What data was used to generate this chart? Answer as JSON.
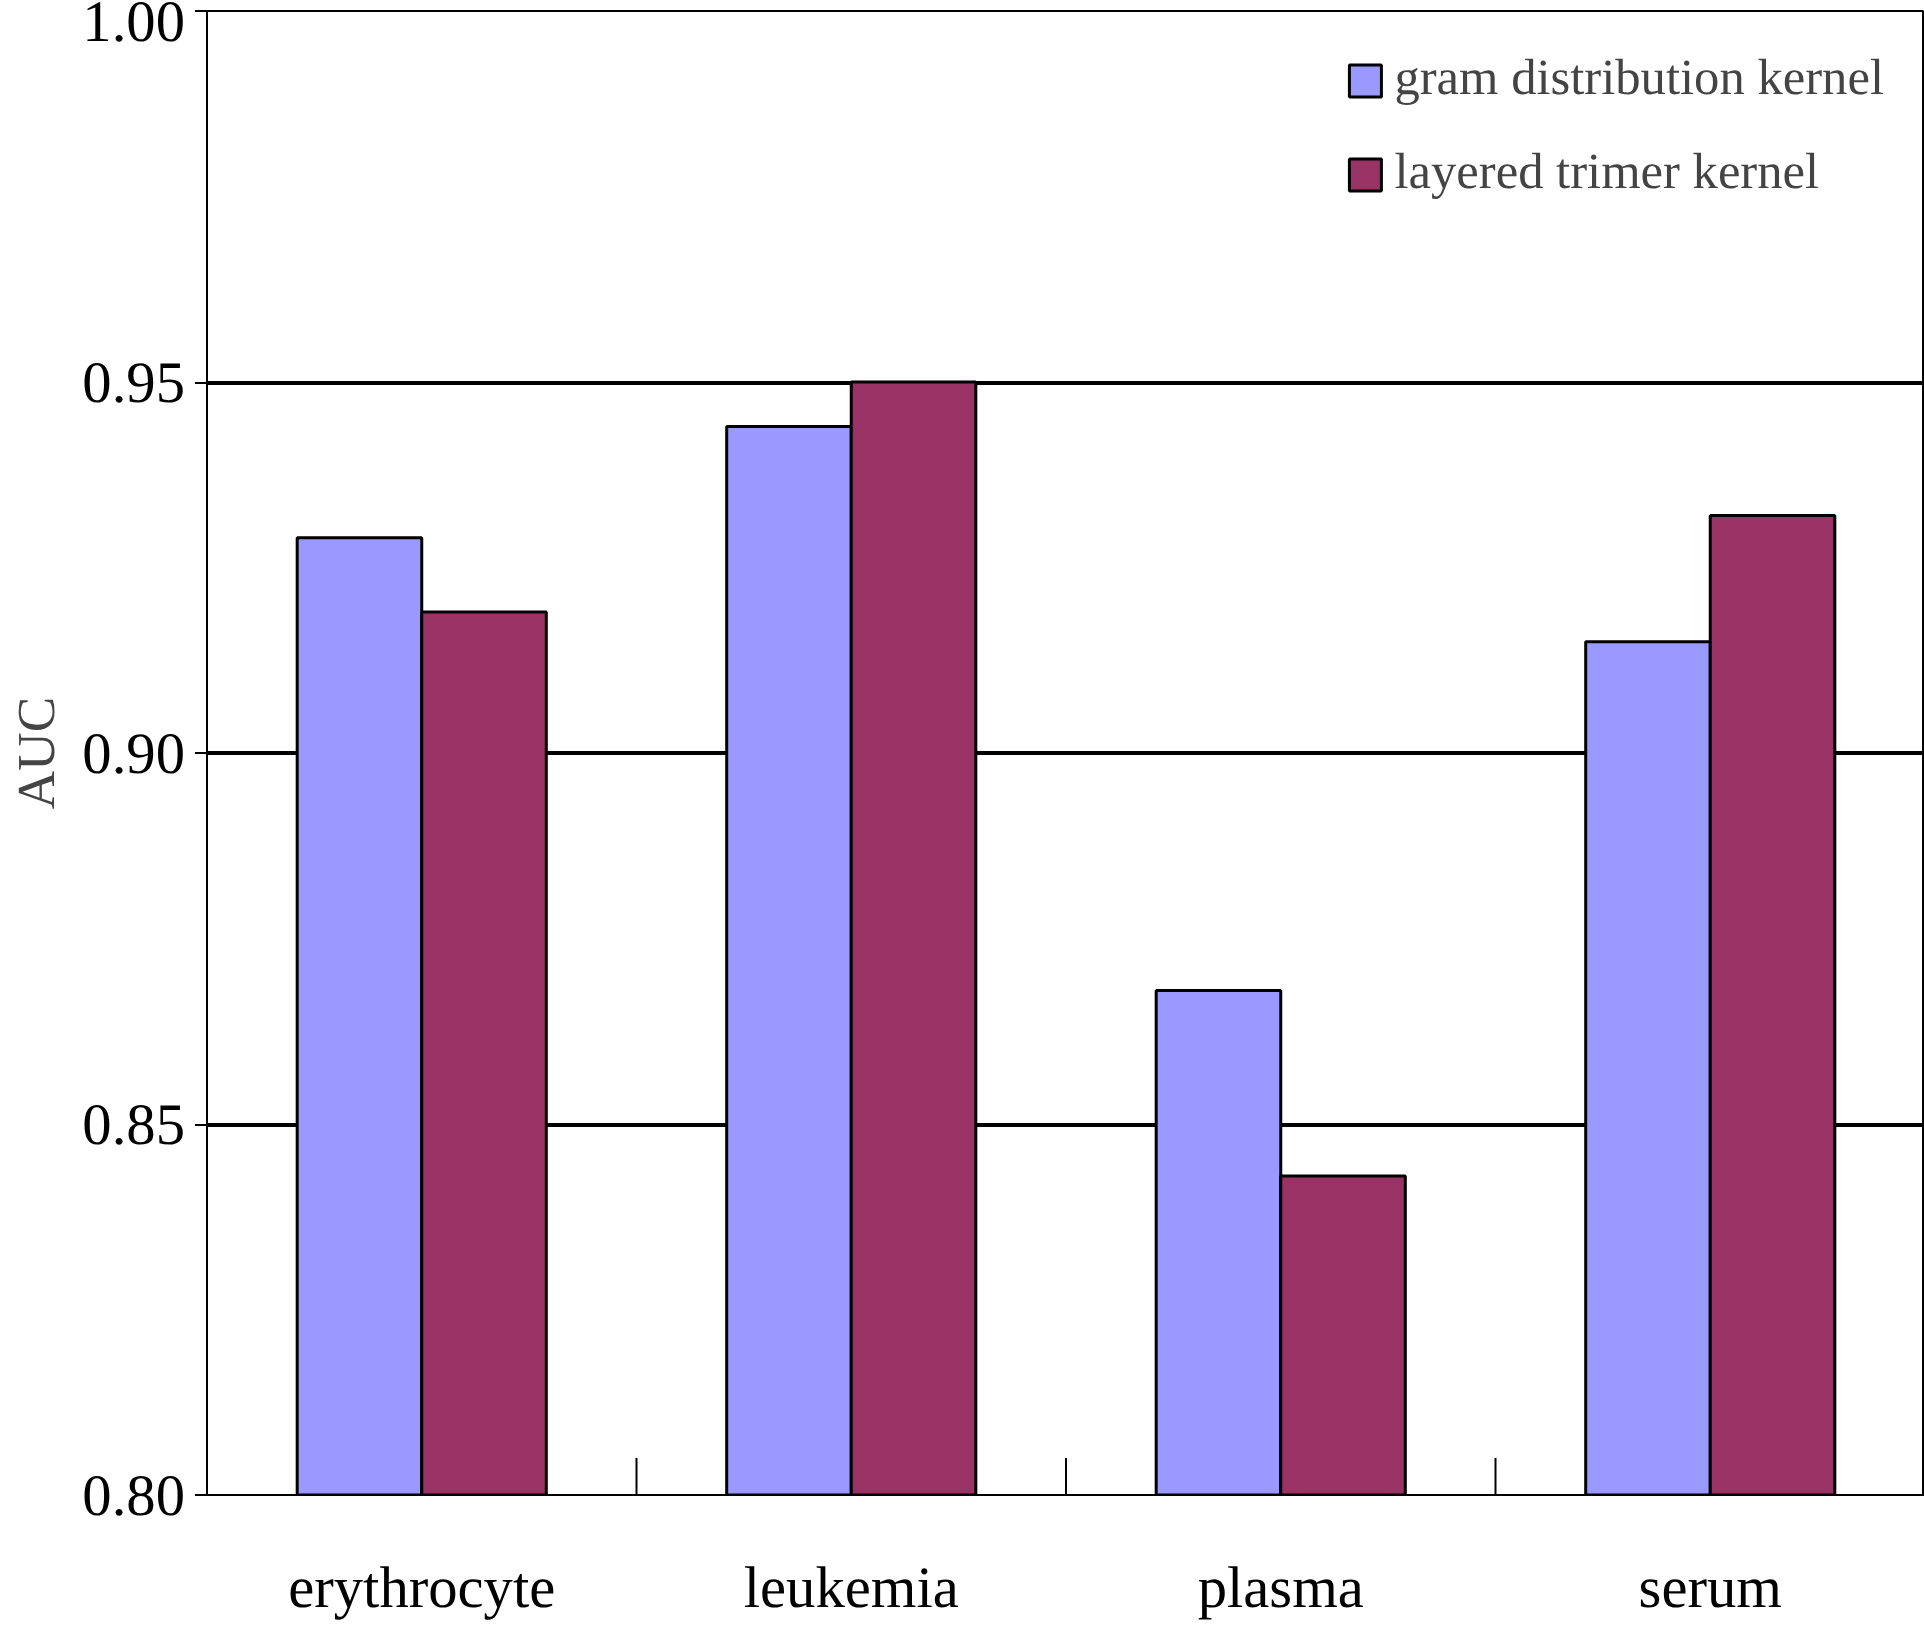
{
  "chart_data": {
    "type": "bar",
    "ylabel": "AUC",
    "categories": [
      "erythrocyte",
      "leukemia",
      "plasma",
      "serum"
    ],
    "series": [
      {
        "name": "gram distribution kernel",
        "color": "#9999ff",
        "values": [
          0.929,
          0.944,
          0.868,
          0.915
        ]
      },
      {
        "name": "layered trimer kernel",
        "color": "#993366",
        "values": [
          0.919,
          0.95,
          0.843,
          0.932
        ]
      }
    ],
    "ylim": [
      0.8,
      1.0
    ],
    "yticks": [
      {
        "value": 0.8,
        "label": "0.80"
      },
      {
        "value": 0.85,
        "label": "0.85"
      },
      {
        "value": 0.9,
        "label": "0.90"
      },
      {
        "value": 0.95,
        "label": "0.95"
      },
      {
        "value": 1.0,
        "label": "1.00"
      }
    ],
    "grid": "y",
    "legend": "top right"
  }
}
